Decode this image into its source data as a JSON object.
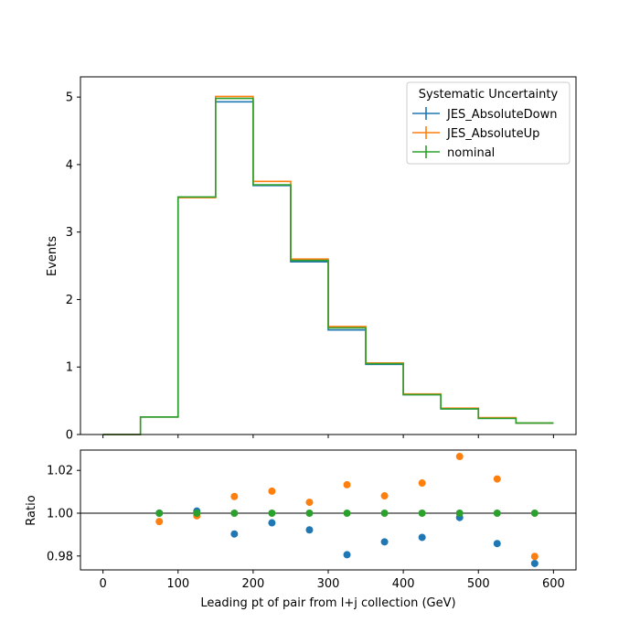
{
  "chart_data": {
    "type": "line",
    "subtype": "step-histogram-with-ratio-panel",
    "xlabel": "Leading pt of pair from l+j collection (GeV)",
    "xlim": [
      -30,
      630
    ],
    "x_ticks": [
      0,
      100,
      200,
      300,
      400,
      500,
      600
    ],
    "bin_edges": [
      0,
      50,
      100,
      150,
      200,
      250,
      300,
      350,
      400,
      450,
      500,
      550,
      600
    ],
    "top_panel": {
      "ylabel": "Events",
      "ylim": [
        0,
        5.3
      ],
      "y_ticks": [
        0,
        1,
        2,
        3,
        4,
        5
      ],
      "legend": {
        "title": "Systematic Uncertainty",
        "placement": "top-right"
      },
      "series": [
        {
          "name": "JES_AbsoluteDown",
          "color": "#1f77b4",
          "values": [
            0.0,
            0.26,
            3.52,
            4.93,
            3.69,
            2.56,
            1.55,
            1.04,
            0.59,
            0.38,
            0.24,
            0.17
          ]
        },
        {
          "name": "JES_AbsoluteUp",
          "color": "#ff7f0e",
          "values": [
            0.0,
            0.26,
            3.51,
            5.01,
            3.75,
            2.6,
            1.6,
            1.06,
            0.6,
            0.39,
            0.25,
            0.17
          ]
        },
        {
          "name": "nominal",
          "color": "#2ca02c",
          "values": [
            0.0,
            0.26,
            3.52,
            4.98,
            3.7,
            2.58,
            1.58,
            1.05,
            0.59,
            0.38,
            0.24,
            0.17
          ]
        }
      ]
    },
    "ratio_panel": {
      "ylabel": "Ratio",
      "ylim": [
        0.9735,
        1.0295
      ],
      "y_ticks": [
        0.98,
        1.0,
        1.02
      ],
      "y_tick_labels": [
        "0.98",
        "1.00",
        "1.02"
      ],
      "reference_line": 1.0,
      "x": [
        75,
        125,
        175,
        225,
        275,
        325,
        375,
        425,
        475,
        525,
        575
      ],
      "series": [
        {
          "name": "JES_AbsoluteDown",
          "color": "#1f77b4",
          "values": [
            1.0,
            1.001,
            0.9903,
            0.9955,
            0.9922,
            0.9806,
            0.9866,
            0.9887,
            0.998,
            0.9858,
            0.9765
          ]
        },
        {
          "name": "JES_AbsoluteUp",
          "color": "#ff7f0e",
          "values": [
            0.9961,
            0.9988,
            1.0078,
            1.0103,
            1.0051,
            1.0133,
            1.0081,
            1.0141,
            1.0265,
            1.016,
            0.9798
          ]
        },
        {
          "name": "nominal",
          "color": "#2ca02c",
          "values": [
            1.0,
            1.0,
            1.0,
            1.0,
            1.0,
            1.0,
            1.0,
            1.0,
            1.0,
            1.0,
            1.0
          ]
        }
      ]
    }
  }
}
